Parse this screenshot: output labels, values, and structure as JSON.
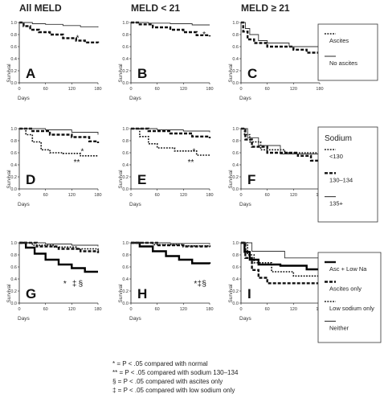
{
  "column_headers": [
    "All MELD",
    "MELD < 21",
    "MELD ≥ 21"
  ],
  "legends": [
    {
      "title": "",
      "entries": [
        "Ascites",
        "No ascites"
      ]
    },
    {
      "title": "Sodium",
      "entries": [
        "<130",
        "130–134",
        "135+"
      ]
    },
    {
      "title": "",
      "entries": [
        "Asc + Low Na",
        "Ascites only",
        "Low sodium only",
        "Neither"
      ]
    }
  ],
  "footnotes": [
    {
      "symbol": "*",
      "text": " = P < .05 compared with normal"
    },
    {
      "symbol": "**",
      "text": " = P < .05 compared with sodium 130–134"
    },
    {
      "symbol": "§",
      "text": " = P < .05 compared with ascites only"
    },
    {
      "symbol": "‡",
      "text": " = P < .05 compared with low sodium only"
    }
  ],
  "series_styles": {
    "dash_dot": "#111111",
    "dash_thick": "#111111",
    "thin": "#333333",
    "thick": "#000000"
  },
  "chart_data": [
    {
      "panel": "A",
      "type": "line",
      "x_tick_labels": [
        "0",
        "60",
        "120",
        "180"
      ],
      "y_tick_labels": [
        "0.0",
        "0.2",
        "0.4",
        "0.6",
        "0.8",
        "1.0"
      ],
      "ylabel": "Survival",
      "xlabel": "Days",
      "xlim": [
        0,
        180
      ],
      "ylim": [
        0,
        1
      ],
      "annotations": [
        "*"
      ],
      "series": [
        {
          "name": "Ascites",
          "style": "dash_thick",
          "points": [
            [
              0,
              1.0
            ],
            [
              10,
              0.94
            ],
            [
              25,
              0.88
            ],
            [
              45,
              0.84
            ],
            [
              70,
              0.8
            ],
            [
              100,
              0.74
            ],
            [
              130,
              0.7
            ],
            [
              150,
              0.67
            ],
            [
              180,
              0.66
            ]
          ]
        },
        {
          "name": "No ascites",
          "style": "thin",
          "points": [
            [
              0,
              1.0
            ],
            [
              30,
              0.98
            ],
            [
              60,
              0.97
            ],
            [
              100,
              0.95
            ],
            [
              140,
              0.93
            ],
            [
              180,
              0.92
            ]
          ]
        }
      ]
    },
    {
      "panel": "B",
      "type": "line",
      "x_tick_labels": [
        "0",
        "60",
        "120",
        "180"
      ],
      "y_tick_labels": [
        "0.0",
        "0.2",
        "0.4",
        "0.6",
        "0.8",
        "1.0"
      ],
      "ylabel": "Survival",
      "xlabel": "Days",
      "xlim": [
        0,
        180
      ],
      "ylim": [
        0,
        1
      ],
      "annotations": [
        "*"
      ],
      "series": [
        {
          "name": "Ascites",
          "style": "dash_thick",
          "points": [
            [
              0,
              1.0
            ],
            [
              20,
              0.97
            ],
            [
              50,
              0.92
            ],
            [
              90,
              0.88
            ],
            [
              120,
              0.84
            ],
            [
              150,
              0.79
            ],
            [
              180,
              0.77
            ]
          ]
        },
        {
          "name": "No ascites",
          "style": "thin",
          "points": [
            [
              0,
              1.0
            ],
            [
              40,
              0.99
            ],
            [
              90,
              0.98
            ],
            [
              140,
              0.96
            ],
            [
              180,
              0.96
            ]
          ]
        }
      ]
    },
    {
      "panel": "C",
      "type": "line",
      "x_tick_labels": [
        "0",
        "60",
        "120",
        "180"
      ],
      "y_tick_labels": [
        "0.0",
        "0.2",
        "0.4",
        "0.6",
        "0.8",
        "1.0"
      ],
      "ylabel": "Survival",
      "xlabel": "Days",
      "xlim": [
        0,
        180
      ],
      "ylim": [
        0,
        1
      ],
      "annotations": [],
      "series": [
        {
          "name": "Ascites",
          "style": "dash_thick",
          "points": [
            [
              0,
              1.0
            ],
            [
              5,
              0.85
            ],
            [
              15,
              0.72
            ],
            [
              30,
              0.66
            ],
            [
              60,
              0.6
            ],
            [
              120,
              0.55
            ],
            [
              150,
              0.5
            ],
            [
              180,
              0.49
            ]
          ]
        },
        {
          "name": "No ascites",
          "style": "thin",
          "points": [
            [
              0,
              1.0
            ],
            [
              10,
              0.9
            ],
            [
              20,
              0.8
            ],
            [
              40,
              0.7
            ],
            [
              60,
              0.66
            ],
            [
              110,
              0.6
            ],
            [
              180,
              0.6
            ]
          ]
        }
      ]
    },
    {
      "panel": "D",
      "type": "line",
      "x_tick_labels": [
        "0",
        "60",
        "120",
        "180"
      ],
      "y_tick_labels": [
        "0.0",
        "0.2",
        "0.4",
        "0.6",
        "0.8",
        "1.0"
      ],
      "ylabel": "Survival",
      "xlabel": "Days",
      "xlim": [
        0,
        180
      ],
      "ylim": [
        0,
        1
      ],
      "annotations": [
        "*",
        "**"
      ],
      "series": [
        {
          "name": "<130",
          "style": "dash_dot",
          "points": [
            [
              0,
              1.0
            ],
            [
              15,
              0.9
            ],
            [
              30,
              0.78
            ],
            [
              50,
              0.65
            ],
            [
              70,
              0.6
            ],
            [
              100,
              0.59
            ],
            [
              140,
              0.55
            ],
            [
              180,
              0.55
            ]
          ]
        },
        {
          "name": "130–134",
          "style": "dash_thick",
          "points": [
            [
              0,
              1.0
            ],
            [
              30,
              0.96
            ],
            [
              70,
              0.9
            ],
            [
              120,
              0.86
            ],
            [
              160,
              0.79
            ],
            [
              180,
              0.76
            ]
          ]
        },
        {
          "name": "135+",
          "style": "thin",
          "points": [
            [
              0,
              1.0
            ],
            [
              60,
              0.98
            ],
            [
              120,
              0.94
            ],
            [
              180,
              0.9
            ]
          ]
        }
      ]
    },
    {
      "panel": "E",
      "type": "line",
      "x_tick_labels": [
        "0",
        "60",
        "120",
        "180"
      ],
      "y_tick_labels": [
        "0.0",
        "0.2",
        "0.4",
        "0.6",
        "0.8",
        "1.0"
      ],
      "ylabel": "Survival",
      "xlabel": "Days",
      "xlim": [
        0,
        180
      ],
      "ylim": [
        0,
        1
      ],
      "annotations": [
        "*",
        "**"
      ],
      "series": [
        {
          "name": "<130",
          "style": "dash_dot",
          "points": [
            [
              0,
              1.0
            ],
            [
              20,
              0.87
            ],
            [
              40,
              0.75
            ],
            [
              60,
              0.68
            ],
            [
              100,
              0.63
            ],
            [
              150,
              0.56
            ],
            [
              180,
              0.55
            ]
          ]
        },
        {
          "name": "130–134",
          "style": "dash_thick",
          "points": [
            [
              0,
              1.0
            ],
            [
              40,
              0.96
            ],
            [
              90,
              0.92
            ],
            [
              140,
              0.87
            ],
            [
              180,
              0.84
            ]
          ]
        },
        {
          "name": "135+",
          "style": "thin",
          "points": [
            [
              0,
              1.0
            ],
            [
              60,
              0.98
            ],
            [
              120,
              0.96
            ],
            [
              180,
              0.94
            ]
          ]
        }
      ]
    },
    {
      "panel": "F",
      "type": "line",
      "x_tick_labels": [
        "0",
        "60",
        "120",
        "180"
      ],
      "y_tick_labels": [
        "0.0",
        "0.2",
        "0.4",
        "0.6",
        "0.8",
        "1.0"
      ],
      "ylabel": "Survival",
      "xlabel": "Days",
      "xlim": [
        0,
        180
      ],
      "ylim": [
        0,
        1
      ],
      "annotations": [],
      "series": [
        {
          "name": "<130",
          "style": "dash_dot",
          "points": [
            [
              0,
              1.0
            ],
            [
              8,
              0.9
            ],
            [
              20,
              0.78
            ],
            [
              45,
              0.65
            ],
            [
              100,
              0.6
            ],
            [
              180,
              0.58
            ]
          ]
        },
        {
          "name": "130–134",
          "style": "dash_thick",
          "points": [
            [
              0,
              1.0
            ],
            [
              10,
              0.82
            ],
            [
              25,
              0.7
            ],
            [
              60,
              0.6
            ],
            [
              130,
              0.55
            ],
            [
              160,
              0.47
            ],
            [
              180,
              0.46
            ]
          ]
        },
        {
          "name": "135+",
          "style": "thin",
          "points": [
            [
              0,
              1.0
            ],
            [
              15,
              0.85
            ],
            [
              40,
              0.72
            ],
            [
              90,
              0.58
            ],
            [
              180,
              0.55
            ]
          ]
        }
      ]
    },
    {
      "panel": "G",
      "type": "line",
      "x_tick_labels": [
        "0",
        "60",
        "120",
        "180"
      ],
      "y_tick_labels": [
        "0.0",
        "0.2",
        "0.4",
        "0.6",
        "0.8",
        "1.0"
      ],
      "ylabel": "Survival",
      "xlabel": "Days",
      "xlim": [
        0,
        180
      ],
      "ylim": [
        0,
        1
      ],
      "annotations": [
        "*",
        "‡",
        "§"
      ],
      "series": [
        {
          "name": "Asc + Low Na",
          "style": "thick",
          "points": [
            [
              0,
              1.0
            ],
            [
              15,
              0.92
            ],
            [
              35,
              0.82
            ],
            [
              60,
              0.72
            ],
            [
              90,
              0.64
            ],
            [
              120,
              0.58
            ],
            [
              150,
              0.52
            ],
            [
              180,
              0.52
            ]
          ]
        },
        {
          "name": "Ascites only",
          "style": "dash_thick",
          "points": [
            [
              0,
              1.0
            ],
            [
              40,
              0.94
            ],
            [
              90,
              0.9
            ],
            [
              140,
              0.86
            ],
            [
              180,
              0.83
            ]
          ]
        },
        {
          "name": "Low sodium only",
          "style": "dash_dot",
          "points": [
            [
              0,
              1.0
            ],
            [
              30,
              0.96
            ],
            [
              80,
              0.93
            ],
            [
              130,
              0.9
            ],
            [
              180,
              0.88
            ]
          ]
        },
        {
          "name": "Neither",
          "style": "thin",
          "points": [
            [
              0,
              1.0
            ],
            [
              60,
              0.98
            ],
            [
              120,
              0.96
            ],
            [
              180,
              0.94
            ]
          ]
        }
      ]
    },
    {
      "panel": "H",
      "type": "line",
      "x_tick_labels": [
        "0",
        "60",
        "120",
        "180"
      ],
      "y_tick_labels": [
        "0.0",
        "0.2",
        "0.4",
        "0.6",
        "0.8",
        "1.0"
      ],
      "ylabel": "Survival",
      "xlabel": "Days",
      "xlim": [
        0,
        180
      ],
      "ylim": [
        0,
        1
      ],
      "annotations": [
        "*",
        "‡",
        "§"
      ],
      "series": [
        {
          "name": "Asc + Low Na",
          "style": "thick",
          "points": [
            [
              0,
              1.0
            ],
            [
              20,
              0.94
            ],
            [
              50,
              0.86
            ],
            [
              80,
              0.78
            ],
            [
              110,
              0.72
            ],
            [
              140,
              0.66
            ],
            [
              180,
              0.65
            ]
          ]
        },
        {
          "name": "Ascites only",
          "style": "dash_thick",
          "points": [
            [
              0,
              1.0
            ],
            [
              60,
              0.96
            ],
            [
              120,
              0.94
            ],
            [
              180,
              0.93
            ]
          ]
        },
        {
          "name": "Low sodium only",
          "style": "dash_dot",
          "points": [
            [
              0,
              1.0
            ],
            [
              50,
              0.97
            ],
            [
              120,
              0.95
            ],
            [
              180,
              0.95
            ]
          ]
        },
        {
          "name": "Neither",
          "style": "thin",
          "points": [
            [
              0,
              1.0
            ],
            [
              90,
              0.99
            ],
            [
              180,
              0.97
            ]
          ]
        }
      ]
    },
    {
      "panel": "I",
      "type": "line",
      "x_tick_labels": [
        "0",
        "60",
        "120",
        "180"
      ],
      "y_tick_labels": [
        "0.0",
        "0.2",
        "0.4",
        "0.6",
        "0.8",
        "1.0"
      ],
      "ylabel": "Survival",
      "xlabel": "Days",
      "xlim": [
        0,
        180
      ],
      "ylim": [
        0,
        1
      ],
      "annotations": [],
      "series": [
        {
          "name": "Asc + Low Na",
          "style": "thick",
          "points": [
            [
              0,
              1.0
            ],
            [
              8,
              0.85
            ],
            [
              20,
              0.72
            ],
            [
              40,
              0.64
            ],
            [
              90,
              0.62
            ],
            [
              150,
              0.56
            ],
            [
              180,
              0.52
            ]
          ]
        },
        {
          "name": "Ascites only",
          "style": "dash_thick",
          "points": [
            [
              0,
              1.0
            ],
            [
              10,
              0.75
            ],
            [
              25,
              0.55
            ],
            [
              40,
              0.42
            ],
            [
              60,
              0.33
            ],
            [
              180,
              0.33
            ]
          ]
        },
        {
          "name": "Low sodium only",
          "style": "dash_dot",
          "points": [
            [
              0,
              1.0
            ],
            [
              15,
              0.8
            ],
            [
              30,
              0.67
            ],
            [
              70,
              0.52
            ],
            [
              120,
              0.45
            ],
            [
              180,
              0.4
            ]
          ]
        },
        {
          "name": "Neither",
          "style": "thin",
          "points": [
            [
              0,
              1.0
            ],
            [
              25,
              0.86
            ],
            [
              60,
              0.86
            ],
            [
              100,
              0.75
            ],
            [
              180,
              0.73
            ]
          ]
        }
      ]
    }
  ]
}
